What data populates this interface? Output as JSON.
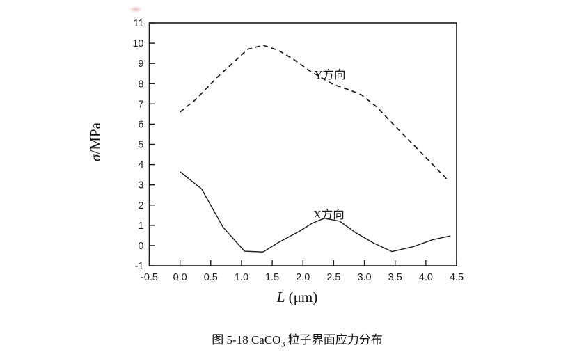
{
  "figure": {
    "caption": {
      "prefix": "图 5-18 CaCO",
      "sub": "3",
      "suffix": " 粒子界面应力分布"
    }
  },
  "colors": {
    "line": "#1a1a1a",
    "background": "#ffffff",
    "scan_artifact": "#d68284"
  },
  "chart_data": {
    "type": "line",
    "title": "",
    "xlabel": {
      "italic": "L",
      "rest": " (μm)"
    },
    "ylabel": {
      "italic": "σ",
      "rest": "/MPa"
    },
    "xlim": [
      -0.5,
      4.5
    ],
    "ylim": [
      -1,
      11
    ],
    "grid": false,
    "legend": "none — curves labeled inline",
    "x_tick_labels": [
      "-0.5",
      "0.0",
      "0.5",
      "1.0",
      "1.5",
      "2.0",
      "2.5",
      "3.0",
      "3.5",
      "4.0",
      "4.5"
    ],
    "y_tick_labels": [
      "-1",
      "0",
      "1",
      "2",
      "3",
      "4",
      "5",
      "6",
      "7",
      "8",
      "9",
      "10",
      "11"
    ],
    "series": [
      {
        "id": "y-direction",
        "name": "Y方向",
        "line_style": "dashed",
        "color": "#1a1a1a",
        "points": [
          [
            0.0,
            6.6
          ],
          [
            0.25,
            7.2
          ],
          [
            0.6,
            8.3
          ],
          [
            0.85,
            9.0
          ],
          [
            1.1,
            9.7
          ],
          [
            1.35,
            9.9
          ],
          [
            1.6,
            9.65
          ],
          [
            1.85,
            9.2
          ],
          [
            2.1,
            8.65
          ],
          [
            2.5,
            7.95
          ],
          [
            2.75,
            7.7
          ],
          [
            2.95,
            7.45
          ],
          [
            3.2,
            6.85
          ],
          [
            3.5,
            5.9
          ],
          [
            4.0,
            4.35
          ],
          [
            4.35,
            3.25
          ]
        ]
      },
      {
        "id": "x-direction",
        "name": "X方向",
        "line_style": "solid",
        "color": "#1a1a1a",
        "points": [
          [
            0.0,
            3.65
          ],
          [
            0.35,
            2.8
          ],
          [
            0.7,
            0.9
          ],
          [
            1.05,
            -0.28
          ],
          [
            1.35,
            -0.32
          ],
          [
            1.6,
            0.15
          ],
          [
            1.95,
            0.72
          ],
          [
            2.15,
            1.1
          ],
          [
            2.35,
            1.35
          ],
          [
            2.6,
            1.2
          ],
          [
            2.85,
            0.65
          ],
          [
            3.15,
            0.12
          ],
          [
            3.45,
            -0.3
          ],
          [
            3.8,
            -0.05
          ],
          [
            4.1,
            0.28
          ],
          [
            4.4,
            0.48
          ]
        ]
      }
    ],
    "annotations": [
      {
        "id": "y-direction",
        "text": "Y方向",
        "x": 2.44,
        "y": 8.45
      },
      {
        "id": "x-direction",
        "text": "X方向",
        "x": 2.42,
        "y": 1.55
      }
    ]
  }
}
